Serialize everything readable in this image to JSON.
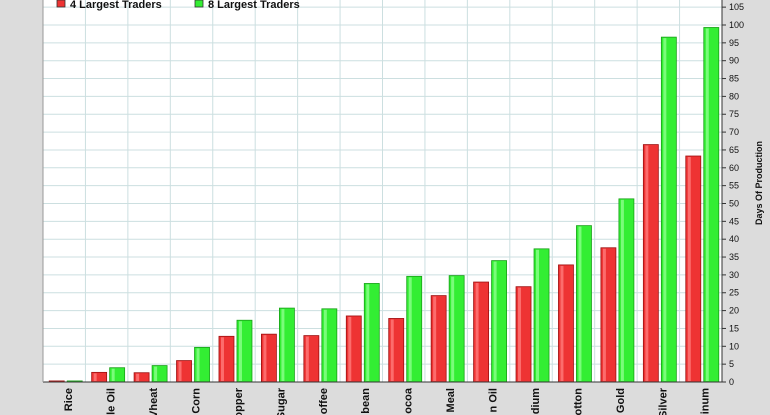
{
  "chart_data": {
    "type": "bar",
    "title": "",
    "xlabel": "",
    "ylabel": "Days Of Production",
    "ylim": [
      0,
      107
    ],
    "yticks": [
      0,
      5,
      10,
      15,
      20,
      25,
      30,
      35,
      40,
      45,
      50,
      55,
      60,
      65,
      70,
      75,
      80,
      85,
      90,
      95,
      100,
      105
    ],
    "grid": true,
    "legend_position": "top-left",
    "categories": [
      "Rice",
      "le Oil",
      "Vheat",
      "Corn",
      "opper",
      "Sugar",
      "offee",
      "bean",
      "ocoa",
      "Meal",
      "n Oil",
      "dium",
      "otton",
      "Gold",
      "Silver",
      "inum"
    ],
    "series": [
      {
        "name": "4 Largest Traders",
        "color": "#ee3333",
        "values": [
          0.3,
          2.7,
          2.6,
          6.0,
          12.8,
          13.4,
          13.0,
          18.5,
          17.8,
          24.2,
          28.0,
          26.7,
          32.8,
          37.6,
          66.5,
          63.3
        ]
      },
      {
        "name": "8 Largest Traders",
        "color": "#33ee33",
        "values": [
          0.3,
          4.0,
          4.6,
          9.7,
          17.3,
          20.7,
          20.5,
          27.6,
          29.6,
          29.8,
          34.0,
          37.3,
          43.8,
          51.3,
          96.6,
          99.3
        ]
      }
    ]
  },
  "colors": {
    "frame": "#dcdcdc",
    "plot_background": "#ffffff",
    "grid": "#ccdfe0"
  }
}
